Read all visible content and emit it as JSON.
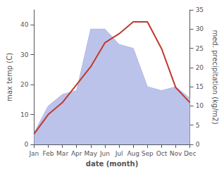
{
  "chart_data": {
    "type": "line",
    "categories": [
      "Jan",
      "Feb",
      "Mar",
      "Apr",
      "May",
      "Jun",
      "Jul",
      "Aug",
      "Sep",
      "Oct",
      "Nov",
      "Dec"
    ],
    "xlabel": "date (month)",
    "ylabel": "max temp (C)",
    "y2label": "med. precipitation (kg/m2)",
    "series": [
      {
        "type": "area",
        "color": "#b0b8e8",
        "axis": "y2",
        "values": [
          3.0,
          10.0,
          13.0,
          14.0,
          30.0,
          30.0,
          26.0,
          25.0,
          15.0,
          14.0,
          15.0,
          12.0
        ]
      },
      {
        "type": "line",
        "color": "#c0392b",
        "values": [
          3.5,
          10.0,
          14.0,
          20.0,
          26.0,
          34.0,
          37.0,
          41.0,
          41.0,
          32.0,
          19.0,
          14.0
        ]
      }
    ],
    "ylim": [
      0,
      45
    ],
    "yticks": [
      0,
      10,
      20,
      30,
      40
    ],
    "y2lim": [
      0,
      35
    ],
    "y2ticks": [
      0,
      5,
      10,
      15,
      20,
      25,
      30,
      35
    ],
    "grid": false
  }
}
